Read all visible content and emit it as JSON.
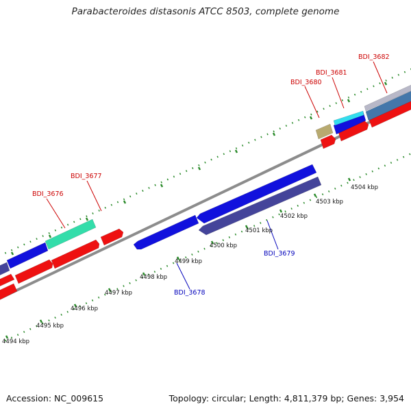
{
  "title": "Parabacteroides distasonis ATCC 8503, complete genome",
  "footer": {
    "accession": "Accession: NC_009615",
    "summary": "Topology: circular; Length: 4,811,379 bp; Genes: 3,954"
  },
  "colors": {
    "backbone": "#8c8c8c",
    "tick": "#2a8a2a",
    "forward_label": "#cc0000",
    "reverse_label": "#0000bb",
    "gene_red": "#ee1111",
    "gene_blue": "#1111dd",
    "gene_navy": "#44449a",
    "gene_cyan": "#33ddee",
    "gene_mint": "#33ddaa",
    "gene_khaki": "#b8aa70",
    "gene_grey": "#b8b8c8",
    "gene_steel": "#4477aa"
  },
  "scale_labels": [
    "4494 kbp",
    "4495 kbp",
    "4496 kbp",
    "4497 kbp",
    "4498 kbp",
    "4499 kbp",
    "4500 kbp",
    "4501 kbp",
    "4502 kbp",
    "4503 kbp",
    "4504 kbp"
  ],
  "gene_labels": {
    "forward": [
      "BDI_3676",
      "BDI_3677",
      "BDI_3680",
      "BDI_3681",
      "BDI_3682"
    ],
    "reverse": [
      "BDI_3678",
      "BDI_3679"
    ]
  }
}
